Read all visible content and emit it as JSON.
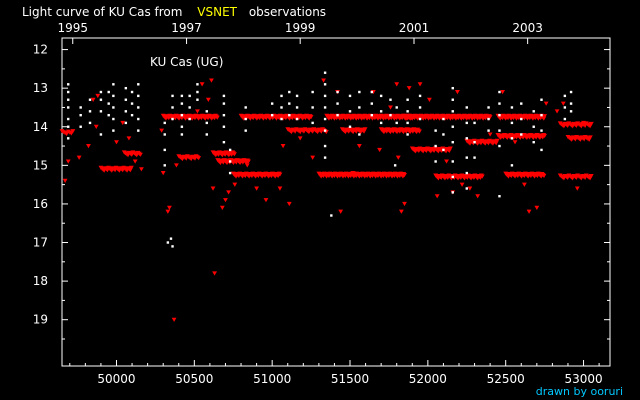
{
  "header": {
    "title_prefix": "Light curve of KU Cas from",
    "title_highlight": "VSNET",
    "title_suffix": "observations",
    "highlight_color": "#ffff00",
    "text_color": "#ffffff"
  },
  "credit": {
    "text": "drawn by ooruri",
    "color": "#00c8ff"
  },
  "chart_data": {
    "type": "scatter",
    "title": "KU Cas (UG)",
    "xlabel": "",
    "ylabel": "",
    "xlim": [
      49650,
      53170
    ],
    "ylim": [
      11.7,
      20.2
    ],
    "y_inverted": true,
    "grid": false,
    "legend": "none",
    "x_ticks": [
      50000,
      50500,
      51000,
      51500,
      52000,
      52500,
      53000
    ],
    "x_tick_labels": [
      "50000",
      "50500",
      "51000",
      "51500",
      "52000",
      "52500",
      "53000"
    ],
    "y_ticks": [
      12,
      13,
      14,
      15,
      16,
      17,
      18,
      19
    ],
    "y_tick_labels": [
      "12",
      "13",
      "14",
      "15",
      "16",
      "17",
      "18",
      "19"
    ],
    "year_ticks": [
      {
        "label": "1995",
        "jd": 49719
      },
      {
        "label": "1997",
        "jd": 50450
      },
      {
        "label": "1999",
        "jd": 51180
      },
      {
        "label": "2001",
        "jd": 51911
      },
      {
        "label": "2003",
        "jd": 52641
      }
    ],
    "colors": {
      "upper_limit": "#ff0000",
      "detection": "#ffffff"
    },
    "series": [
      {
        "marker": "v",
        "color": "#ff0000",
        "bands": [
          {
            "x": [
              49650,
              49720
            ],
            "y": 14.15,
            "step": 10
          },
          {
            "x": [
              49900,
              50100
            ],
            "y": 15.1,
            "step": 7
          },
          {
            "x": [
              50050,
              50160
            ],
            "y": 14.7,
            "step": 8
          },
          {
            "x": [
              50300,
              50650
            ],
            "y": 13.75,
            "step": 6
          },
          {
            "x": [
              50400,
              50530
            ],
            "y": 14.8,
            "step": 8
          },
          {
            "x": [
              50620,
              50760
            ],
            "y": 14.7,
            "step": 6
          },
          {
            "x": [
              50650,
              50850
            ],
            "y": 14.9,
            "step": 6
          },
          {
            "x": [
              50750,
              51050
            ],
            "y": 15.25,
            "step": 6
          },
          {
            "x": [
              50800,
              51250
            ],
            "y": 13.75,
            "step": 6
          },
          {
            "x": [
              51100,
              51350
            ],
            "y": 14.1,
            "step": 8
          },
          {
            "x": [
              51350,
              51900
            ],
            "y": 13.75,
            "step": 5
          },
          {
            "x": [
              51300,
              51850
            ],
            "y": 15.25,
            "step": 5
          },
          {
            "x": [
              51450,
              51600
            ],
            "y": 14.1,
            "step": 7
          },
          {
            "x": [
              51700,
              51950
            ],
            "y": 14.1,
            "step": 6
          },
          {
            "x": [
              51850,
              52400
            ],
            "y": 13.75,
            "step": 5
          },
          {
            "x": [
              51900,
              52150
            ],
            "y": 14.6,
            "step": 7
          },
          {
            "x": [
              52050,
              52350
            ],
            "y": 15.3,
            "step": 6
          },
          {
            "x": [
              52250,
              52450
            ],
            "y": 14.4,
            "step": 7
          },
          {
            "x": [
              52450,
              52750
            ],
            "y": 13.75,
            "step": 5
          },
          {
            "x": [
              52450,
              52750
            ],
            "y": 14.25,
            "step": 6
          },
          {
            "x": [
              52500,
              52750
            ],
            "y": 15.25,
            "step": 6
          },
          {
            "x": [
              52850,
              53050
            ],
            "y": 13.95,
            "step": 8
          },
          {
            "x": [
              52850,
              53050
            ],
            "y": 15.3,
            "step": 8
          },
          {
            "x": [
              52900,
              53050
            ],
            "y": 14.3,
            "step": 8
          }
        ],
        "points": [
          [
            49670,
            15.4
          ],
          [
            49690,
            14.9
          ],
          [
            49760,
            14.8
          ],
          [
            49820,
            14.5
          ],
          [
            49850,
            13.3
          ],
          [
            49870,
            14.0
          ],
          [
            49880,
            13.2
          ],
          [
            50000,
            14.4
          ],
          [
            50040,
            13.9
          ],
          [
            50080,
            14.3
          ],
          [
            50160,
            15.1
          ],
          [
            50120,
            14.9
          ],
          [
            50290,
            14.1
          ],
          [
            50300,
            15.2
          ],
          [
            50330,
            16.2
          ],
          [
            50340,
            16.1
          ],
          [
            50370,
            19.0
          ],
          [
            50385,
            15.0
          ],
          [
            50520,
            13.6
          ],
          [
            50550,
            12.9
          ],
          [
            50590,
            13.3
          ],
          [
            50610,
            12.8
          ],
          [
            50620,
            15.6
          ],
          [
            50630,
            17.8
          ],
          [
            50680,
            16.1
          ],
          [
            50700,
            15.9
          ],
          [
            50720,
            15.7
          ],
          [
            50760,
            15.5
          ],
          [
            50840,
            15.0
          ],
          [
            50900,
            15.6
          ],
          [
            50960,
            15.9
          ],
          [
            51050,
            15.6
          ],
          [
            51110,
            16.0
          ],
          [
            51070,
            14.5
          ],
          [
            51180,
            14.3
          ],
          [
            51260,
            14.8
          ],
          [
            51330,
            12.8
          ],
          [
            51420,
            13.1
          ],
          [
            51440,
            16.2
          ],
          [
            51520,
            15.2
          ],
          [
            51560,
            14.5
          ],
          [
            51650,
            13.1
          ],
          [
            51690,
            14.6
          ],
          [
            51760,
            13.5
          ],
          [
            51800,
            12.9
          ],
          [
            51810,
            14.8
          ],
          [
            51830,
            16.2
          ],
          [
            51850,
            16.0
          ],
          [
            51880,
            13.0
          ],
          [
            51950,
            12.9
          ],
          [
            52010,
            13.3
          ],
          [
            52060,
            15.8
          ],
          [
            52120,
            14.9
          ],
          [
            52160,
            15.7
          ],
          [
            52190,
            13.1
          ],
          [
            52220,
            15.5
          ],
          [
            52270,
            15.6
          ],
          [
            52320,
            15.8
          ],
          [
            52400,
            14.2
          ],
          [
            52480,
            13.1
          ],
          [
            52560,
            14.4
          ],
          [
            52620,
            15.5
          ],
          [
            52650,
            16.2
          ],
          [
            52700,
            16.1
          ],
          [
            52760,
            13.4
          ],
          [
            52830,
            13.6
          ],
          [
            52870,
            13.4
          ],
          [
            52960,
            15.6
          ],
          [
            53000,
            13.9
          ]
        ]
      },
      {
        "marker": "dot",
        "color": "#ffffff",
        "columns": [
          {
            "x": 49690,
            "y": [
              12.9,
              13.1,
              13.3,
              13.5,
              13.8,
              14.0,
              14.3
            ]
          },
          {
            "x": 49770,
            "y": [
              13.5,
              13.7,
              14.0
            ]
          },
          {
            "x": 49830,
            "y": [
              13.3,
              13.6,
              13.9
            ]
          },
          {
            "x": 49900,
            "y": [
              13.1,
              13.3,
              13.6,
              14.2
            ]
          },
          {
            "x": 49950,
            "y": [
              13.1,
              13.4,
              13.7
            ]
          },
          {
            "x": 49980,
            "y": [
              12.9,
              13.2,
              13.5,
              13.8,
              14.1
            ]
          },
          {
            "x": 50060,
            "y": [
              13.0,
              13.3,
              13.6,
              13.9
            ]
          },
          {
            "x": 50100,
            "y": [
              13.1,
              13.4,
              13.7
            ]
          },
          {
            "x": 50140,
            "y": [
              12.9,
              13.2,
              13.5,
              13.8,
              14.1
            ]
          },
          {
            "x": 50310,
            "y": [
              13.9,
              14.2,
              14.6,
              15.0
            ]
          },
          {
            "x": 50360,
            "y": [
              13.2,
              13.5,
              13.8
            ]
          },
          {
            "x": 50420,
            "y": [
              13.2,
              13.4,
              13.7,
              14.0,
              14.2
            ]
          },
          {
            "x": 50470,
            "y": [
              13.2,
              13.5,
              13.8
            ]
          },
          {
            "x": 50520,
            "y": [
              12.9,
              13.1,
              13.3
            ]
          },
          {
            "x": 50580,
            "y": [
              13.6,
              13.9,
              14.2
            ]
          },
          {
            "x": 50690,
            "y": [
              13.2,
              13.4,
              13.7,
              14.0,
              14.4
            ]
          },
          {
            "x": 50730,
            "y": [
              14.6,
              14.9,
              15.2
            ]
          },
          {
            "x": 50830,
            "y": [
              13.5,
              13.8,
              14.1
            ]
          },
          {
            "x": 51000,
            "y": [
              13.4,
              13.7
            ]
          },
          {
            "x": 51060,
            "y": [
              13.2,
              13.5,
              13.8
            ]
          },
          {
            "x": 51110,
            "y": [
              13.1,
              13.4,
              13.7
            ]
          },
          {
            "x": 51160,
            "y": [
              13.2,
              13.5,
              13.8
            ]
          },
          {
            "x": 51260,
            "y": [
              13.1,
              13.5,
              13.9
            ]
          },
          {
            "x": 51340,
            "y": [
              12.6,
              12.9,
              13.2,
              13.5,
              13.8,
              14.1,
              14.5,
              14.8
            ]
          },
          {
            "x": 51420,
            "y": [
              13.1,
              13.4,
              13.7
            ]
          },
          {
            "x": 51500,
            "y": [
              13.2,
              13.6,
              14.0
            ]
          },
          {
            "x": 51560,
            "y": [
              13.1,
              13.5,
              14.2
            ]
          },
          {
            "x": 51640,
            "y": [
              13.1,
              13.4,
              13.7
            ]
          },
          {
            "x": 51700,
            "y": [
              13.2,
              13.6,
              13.9
            ]
          },
          {
            "x": 51760,
            "y": [
              13.3,
              13.7
            ]
          },
          {
            "x": 51800,
            "y": [
              13.5,
              13.9
            ]
          },
          {
            "x": 51870,
            "y": [
              13.3,
              13.6,
              13.9,
              14.2
            ]
          },
          {
            "x": 51950,
            "y": [
              13.2,
              13.5,
              13.8
            ]
          },
          {
            "x": 52050,
            "y": [
              14.1,
              14.5,
              14.9
            ]
          },
          {
            "x": 52100,
            "y": [
              13.8,
              14.2,
              14.6
            ]
          },
          {
            "x": 52160,
            "y": [
              13.0,
              13.3,
              13.6,
              14.0,
              14.4,
              14.9,
              15.3,
              15.7
            ]
          },
          {
            "x": 52250,
            "y": [
              13.5,
              13.9,
              14.3,
              14.8,
              15.2,
              15.6
            ]
          },
          {
            "x": 52300,
            "y": [
              13.9,
              14.4,
              14.8
            ]
          },
          {
            "x": 52390,
            "y": [
              13.5,
              13.8,
              14.1
            ]
          },
          {
            "x": 52460,
            "y": [
              13.1,
              13.4,
              13.7,
              14.1,
              14.5,
              15.8
            ]
          },
          {
            "x": 52540,
            "y": [
              13.5,
              13.9,
              14.3,
              15.0
            ]
          },
          {
            "x": 52600,
            "y": [
              13.4,
              13.8,
              14.2
            ]
          },
          {
            "x": 52680,
            "y": [
              13.6,
              14.0,
              14.4
            ]
          },
          {
            "x": 52730,
            "y": [
              13.3,
              13.7,
              14.1,
              14.6
            ]
          },
          {
            "x": 52880,
            "y": [
              13.2,
              13.5,
              13.8
            ]
          },
          {
            "x": 52920,
            "y": [
              13.1,
              13.4,
              13.6
            ]
          }
        ],
        "points": [
          [
            50330,
            17.0
          ],
          [
            50350,
            16.9
          ],
          [
            50360,
            17.1
          ],
          [
            51380,
            16.3
          ],
          [
            51790,
            15.0
          ]
        ]
      }
    ]
  }
}
